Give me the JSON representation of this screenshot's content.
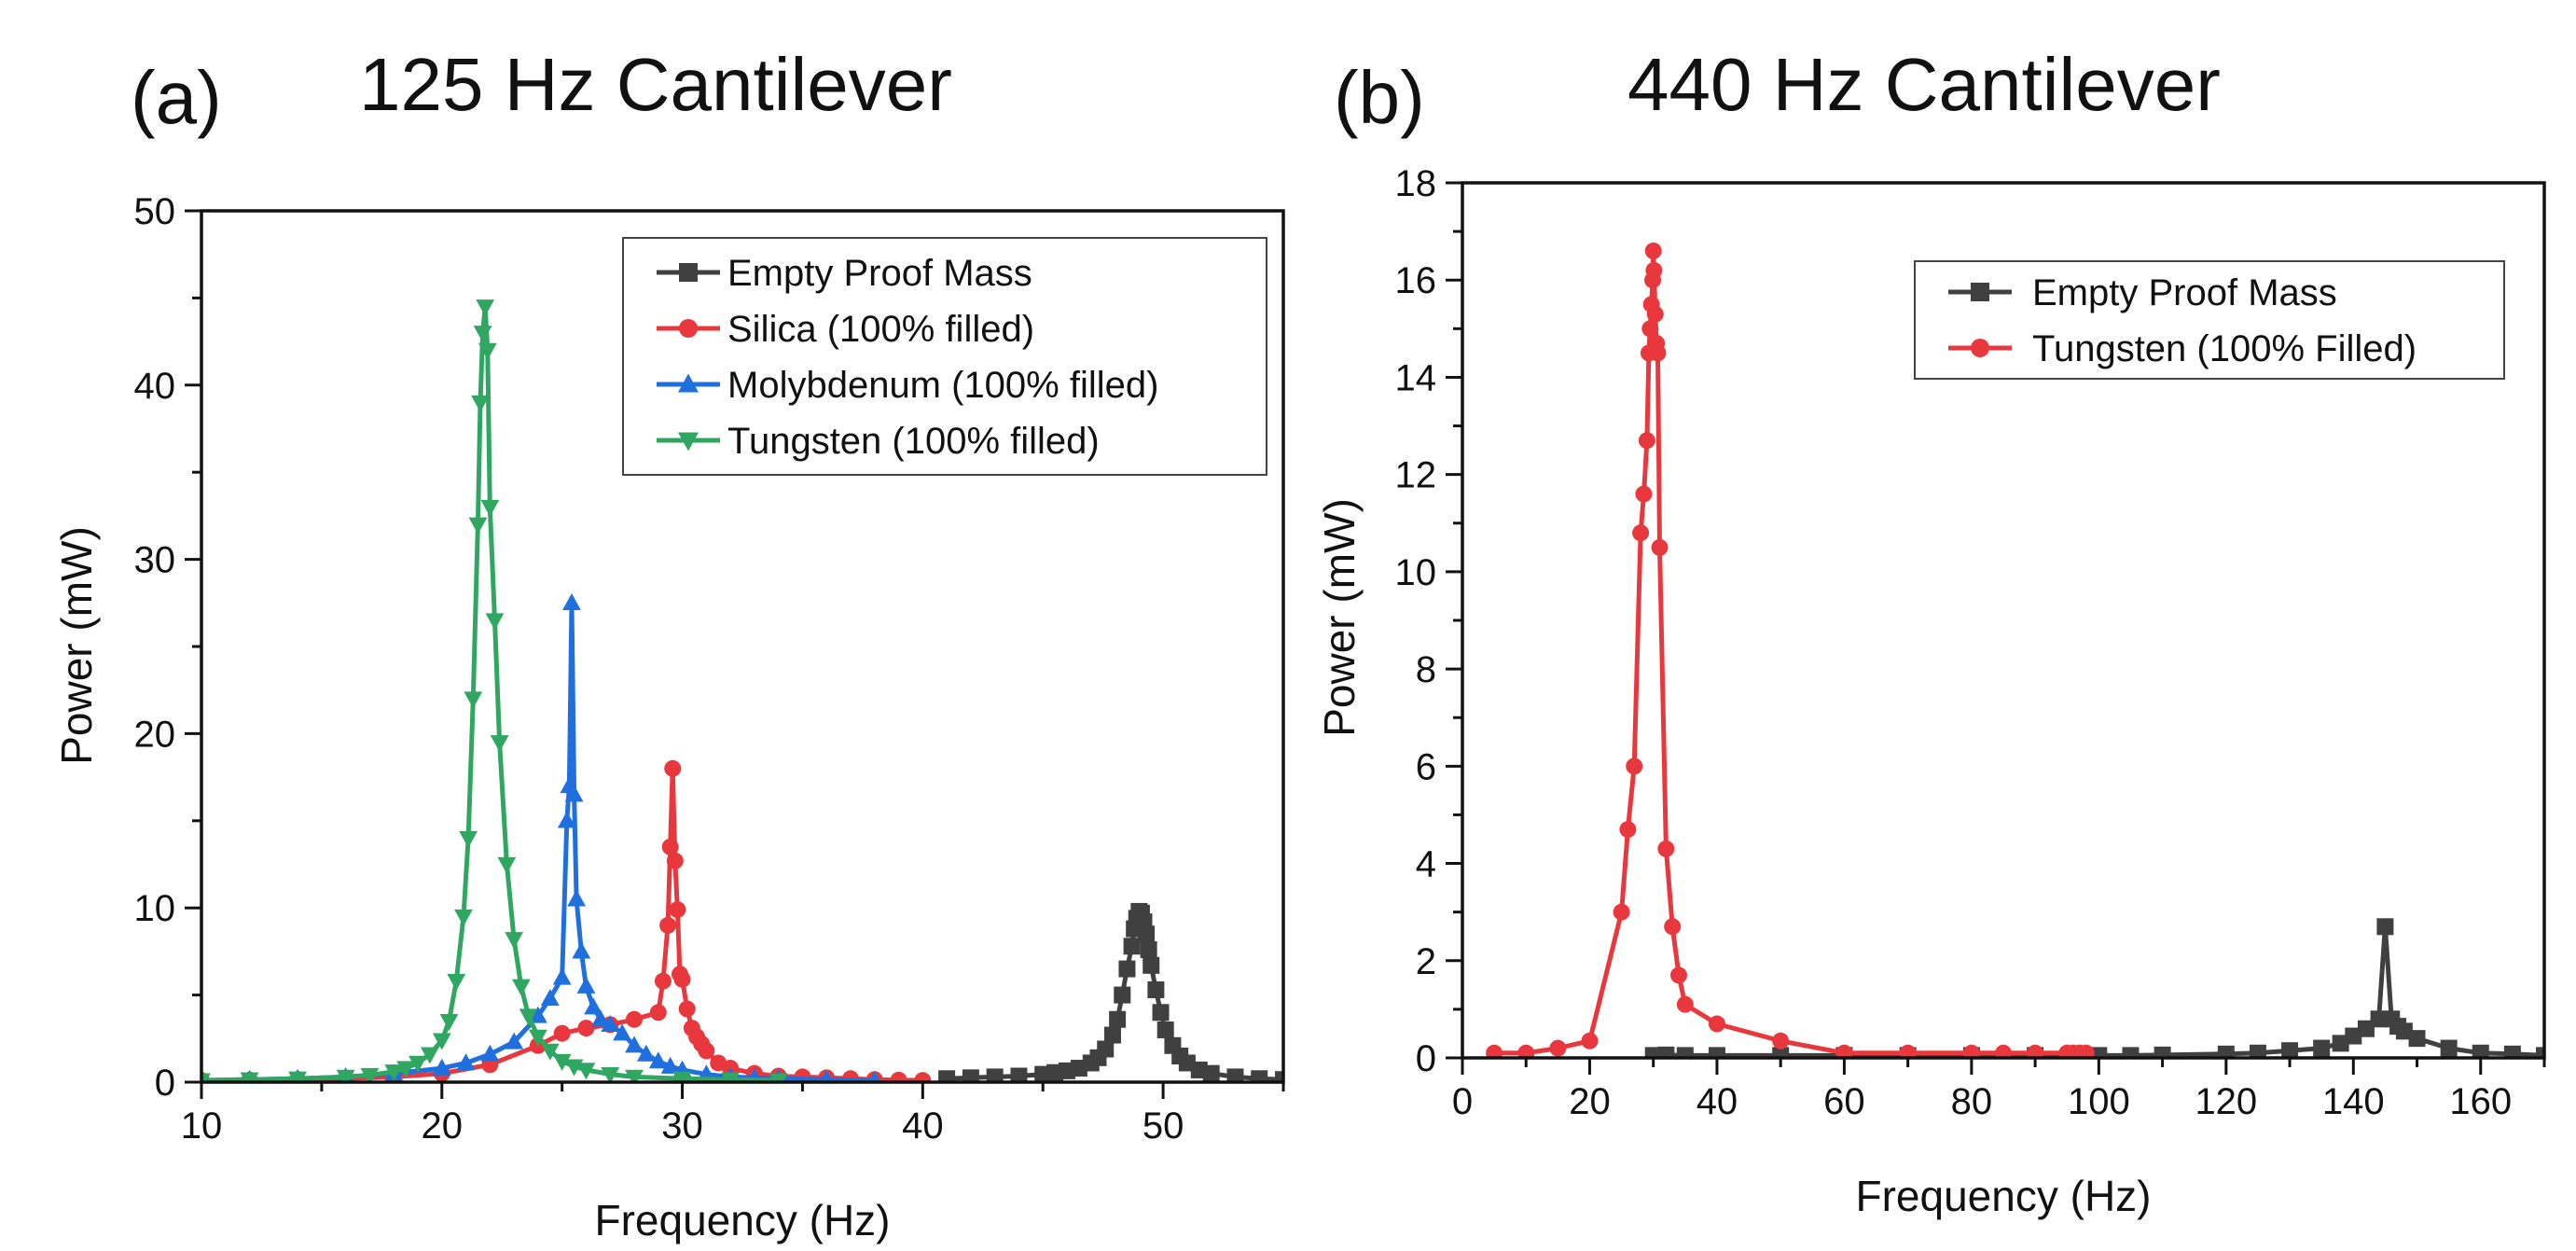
{
  "chart_data": [
    {
      "type": "line",
      "panel_label": "(a)",
      "title": "125 Hz Cantilever",
      "xlabel": "Frequency (Hz)",
      "ylabel": "Power (mW)",
      "xlim": [
        10,
        55
      ],
      "ylim": [
        0,
        50
      ],
      "xticks": [
        "10",
        "20",
        "30",
        "40",
        "50"
      ],
      "yticks": [
        "0",
        "10",
        "20",
        "30",
        "40",
        "50"
      ],
      "legend_position": "top-right",
      "series": [
        {
          "name": "Empty Proof Mass",
          "color": "#404040",
          "marker": "square",
          "x": [
            41,
            42,
            43,
            44,
            45,
            45.5,
            46,
            46.5,
            47,
            47.3,
            47.6,
            47.9,
            48.1,
            48.3,
            48.5,
            48.7,
            48.8,
            48.9,
            49,
            49.1,
            49.2,
            49.3,
            49.4,
            49.5,
            49.7,
            49.9,
            50.1,
            50.4,
            50.7,
            51,
            51.5,
            52,
            53,
            54,
            55
          ],
          "y": [
            0.2,
            0.25,
            0.3,
            0.35,
            0.45,
            0.55,
            0.65,
            0.8,
            1.1,
            1.4,
            1.9,
            2.7,
            3.6,
            5,
            6.5,
            7.8,
            8.8,
            9.4,
            9.8,
            9.7,
            9.2,
            8.5,
            7.6,
            6.7,
            5.3,
            4,
            3,
            2.1,
            1.5,
            1.1,
            0.7,
            0.5,
            0.3,
            0.2,
            0.15
          ]
        },
        {
          "name": "Silica (100% filled)",
          "color": "#E8383D",
          "marker": "circle",
          "x": [
            10,
            12,
            14,
            16,
            18,
            20,
            22,
            24,
            25,
            26,
            27,
            28,
            29,
            29.2,
            29.4,
            29.5,
            29.6,
            29.7,
            29.8,
            29.9,
            30,
            30.2,
            30.4,
            30.6,
            30.8,
            31,
            31.5,
            32,
            33,
            34,
            35,
            36,
            37,
            38,
            39,
            40
          ],
          "y": [
            0.1,
            0.12,
            0.15,
            0.2,
            0.3,
            0.5,
            1,
            2.1,
            2.8,
            3.1,
            3.3,
            3.6,
            4,
            5.8,
            9,
            13.5,
            18,
            12.7,
            9.9,
            6.2,
            5.9,
            4.2,
            3.1,
            2.6,
            2.2,
            1.8,
            1.1,
            0.8,
            0.5,
            0.35,
            0.3,
            0.25,
            0.2,
            0.15,
            0.12,
            0.1
          ]
        },
        {
          "name": "Molybdenum (100% filled)",
          "color": "#1F6FDE",
          "marker": "triangle-up",
          "x": [
            10,
            12,
            14,
            16,
            18,
            20,
            21,
            22,
            23,
            24,
            24.5,
            25,
            25.2,
            25.3,
            25.4,
            25.5,
            25.6,
            25.8,
            26,
            26.3,
            26.6,
            27,
            27.5,
            28,
            28.5,
            29,
            29.5,
            30,
            31,
            32,
            33,
            34,
            36,
            38
          ],
          "y": [
            0.1,
            0.15,
            0.2,
            0.3,
            0.5,
            0.8,
            1.1,
            1.6,
            2.3,
            3.8,
            4.8,
            6,
            15,
            17,
            27.5,
            16.5,
            10.5,
            7.5,
            5.5,
            4.3,
            3.6,
            3.3,
            2.8,
            2.1,
            1.6,
            1.2,
            0.9,
            0.7,
            0.45,
            0.3,
            0.25,
            0.2,
            0.15,
            0.1
          ]
        },
        {
          "name": "Tungsten (100% filled)",
          "color": "#2FA760",
          "marker": "triangle-down",
          "x": [
            10,
            12,
            14,
            16,
            17,
            18,
            18.5,
            19,
            19.5,
            20,
            20.3,
            20.6,
            20.9,
            21.1,
            21.3,
            21.5,
            21.6,
            21.7,
            21.8,
            21.9,
            22,
            22.2,
            22.4,
            22.7,
            23,
            23.3,
            23.6,
            24,
            24.5,
            25,
            25.5,
            26,
            27,
            28,
            30,
            32,
            34
          ],
          "y": [
            0.1,
            0.15,
            0.2,
            0.3,
            0.4,
            0.6,
            0.8,
            1.1,
            1.6,
            2.4,
            3.5,
            5.8,
            9.5,
            14,
            22,
            32,
            39,
            43,
            44.5,
            42,
            33,
            26.5,
            19.5,
            12.5,
            8.2,
            5.5,
            3.8,
            2.6,
            1.8,
            1.2,
            0.9,
            0.7,
            0.45,
            0.3,
            0.2,
            0.15,
            0.1
          ]
        }
      ]
    },
    {
      "type": "line",
      "panel_label": "(b)",
      "title": "440 Hz Cantilever",
      "xlabel": "Frequency (Hz)",
      "ylabel": "Power (mW)",
      "xlim": [
        0,
        170
      ],
      "ylim": [
        0,
        18
      ],
      "xticks": [
        "0",
        "20",
        "40",
        "60",
        "80",
        "100",
        "120",
        "140",
        "160"
      ],
      "yticks": [
        "0",
        "2",
        "4",
        "6",
        "8",
        "10",
        "12",
        "14",
        "16",
        "18"
      ],
      "legend_position": "top-right",
      "series": [
        {
          "name": "Empty Proof Mass",
          "color": "#404040",
          "marker": "square",
          "x": [
            30,
            32,
            35,
            40,
            50,
            60,
            70,
            80,
            90,
            100,
            105,
            110,
            120,
            125,
            130,
            135,
            138,
            140,
            142,
            144,
            145,
            146,
            147,
            148,
            150,
            155,
            160,
            165,
            170
          ],
          "y": [
            0.05,
            0.06,
            0.05,
            0.05,
            0.05,
            0.05,
            0.05,
            0.05,
            0.05,
            0.05,
            0.05,
            0.06,
            0.08,
            0.1,
            0.15,
            0.2,
            0.3,
            0.45,
            0.6,
            0.8,
            2.7,
            0.8,
            0.65,
            0.55,
            0.4,
            0.2,
            0.1,
            0.08,
            0.05
          ]
        },
        {
          "name": "Tungsten (100% Filled)",
          "color": "#E8383D",
          "marker": "circle",
          "x": [
            5,
            10,
            15,
            20,
            25,
            26,
            27,
            28,
            28.5,
            29,
            29.3,
            29.5,
            29.7,
            29.9,
            30,
            30.1,
            30.3,
            30.5,
            30.7,
            31,
            32,
            33,
            34,
            35,
            40,
            50,
            60,
            70,
            80,
            85,
            90,
            95,
            96,
            97,
            98
          ],
          "y": [
            0.1,
            0.1,
            0.2,
            0.35,
            3,
            4.7,
            6,
            10.8,
            11.6,
            12.7,
            14.5,
            15,
            15.5,
            16,
            16.6,
            16.2,
            15.3,
            14.7,
            14.5,
            10.5,
            4.3,
            2.7,
            1.7,
            1.1,
            0.7,
            0.35,
            0.1,
            0.1,
            0.1,
            0.1,
            0.1,
            0.1,
            0.1,
            0.1,
            0.1
          ]
        }
      ]
    }
  ]
}
